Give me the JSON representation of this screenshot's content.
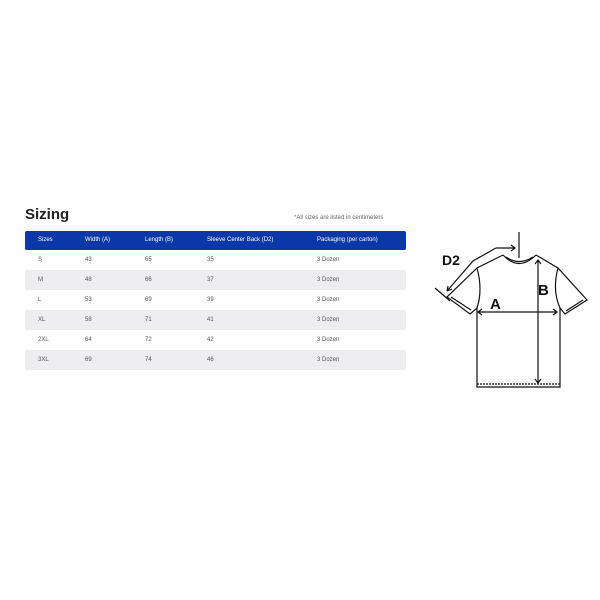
{
  "title": "Sizing",
  "note": "*All sizes are listed in centimeters",
  "table": {
    "headers": [
      "Sizes",
      "Width (A)",
      "Length (B)",
      "Sleeve Center Back (D2)",
      "Packaging (per carton)"
    ],
    "rows": [
      [
        "S",
        "43",
        "65",
        "35",
        "3 Dozen"
      ],
      [
        "M",
        "48",
        "66",
        "37",
        "3 Dozen"
      ],
      [
        "L",
        "53",
        "69",
        "39",
        "3 Dozen"
      ],
      [
        "XL",
        "58",
        "71",
        "41",
        "3 Dozen"
      ],
      [
        "2XL",
        "64",
        "72",
        "42",
        "3 Dozen"
      ],
      [
        "3XL",
        "69",
        "74",
        "46",
        "3 Dozen"
      ]
    ]
  },
  "diagram": {
    "label_d2": "D2",
    "label_a": "A",
    "label_b": "B"
  },
  "colors": {
    "header": "#0a38a8",
    "stripe": "#eeeef0"
  }
}
